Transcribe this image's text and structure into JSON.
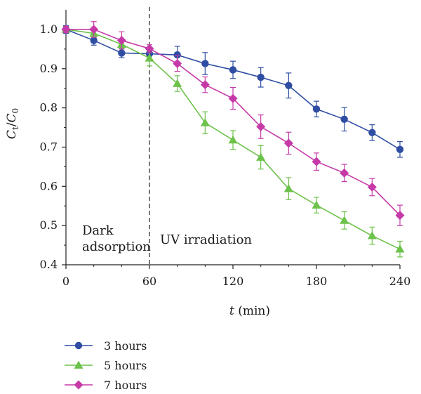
{
  "chart_data": {
    "type": "line",
    "title": "",
    "xlabel": "t (min)",
    "xlabel_var": "t",
    "xlabel_unit": "(min)",
    "ylabel": "Ct/C0",
    "ylabel_parts": {
      "c1": "C",
      "s1": "t",
      "slash": "/",
      "c2": "C",
      "s2": "0"
    },
    "xlim": [
      0,
      240
    ],
    "ylim": [
      0.4,
      1.05
    ],
    "xticks": [
      0,
      60,
      120,
      180,
      240
    ],
    "yticks": [
      0.4,
      0.5,
      0.6,
      0.7,
      0.8,
      0.9,
      1.0
    ],
    "xtick_labels": [
      "0",
      "60",
      "120",
      "180",
      "240"
    ],
    "ytick_labels": [
      "0.4",
      "0.5",
      "0.6",
      "0.7",
      "0.8",
      "0.9",
      "1.0"
    ],
    "grid": false,
    "legend_position": "bottom-left",
    "divider_x": 60,
    "annotations": {
      "dark_line1": "Dark",
      "dark_line2": "adsorption",
      "uv": "UV irradiation"
    },
    "x": [
      0,
      20,
      40,
      60,
      80,
      100,
      120,
      140,
      160,
      180,
      200,
      220,
      240
    ],
    "series": [
      {
        "name": "3 hours",
        "color": "#2f4ea3",
        "marker": "circle",
        "values": [
          1.0,
          0.972,
          0.94,
          0.938,
          0.935,
          0.913,
          0.897,
          0.878,
          0.857,
          0.797,
          0.771,
          0.737,
          0.694
        ],
        "errors": [
          0.01,
          0.012,
          0.012,
          0.015,
          0.022,
          0.028,
          0.022,
          0.025,
          0.032,
          0.02,
          0.03,
          0.02,
          0.02
        ]
      },
      {
        "name": "5 hours",
        "color": "#6cc24a",
        "marker": "triangle",
        "values": [
          1.0,
          0.99,
          0.962,
          0.927,
          0.862,
          0.762,
          0.718,
          0.674,
          0.594,
          0.552,
          0.513,
          0.474,
          0.44
        ],
        "errors": [
          0.008,
          0.01,
          0.01,
          0.02,
          0.02,
          0.028,
          0.024,
          0.03,
          0.028,
          0.02,
          0.022,
          0.022,
          0.02
        ]
      },
      {
        "name": "7 hours",
        "color": "#c63aa8",
        "marker": "diamond",
        "values": [
          1.0,
          1.0,
          0.972,
          0.951,
          0.913,
          0.859,
          0.824,
          0.752,
          0.71,
          0.663,
          0.634,
          0.598,
          0.526
        ],
        "errors": [
          0.008,
          0.02,
          0.022,
          0.01,
          0.02,
          0.02,
          0.028,
          0.03,
          0.028,
          0.022,
          0.022,
          0.022,
          0.026
        ]
      }
    ]
  }
}
